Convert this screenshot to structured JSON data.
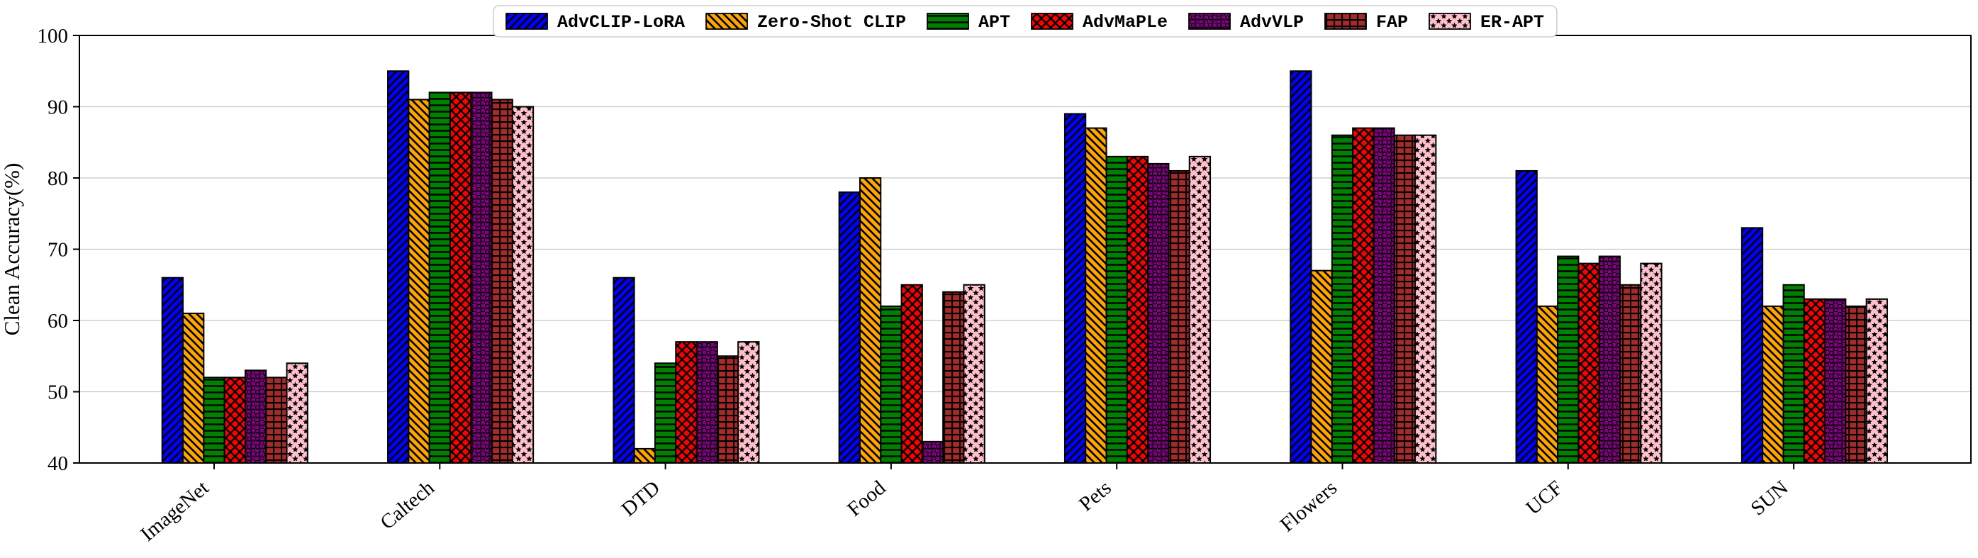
{
  "figure": {
    "background": "#ffffff"
  },
  "chart_data": {
    "type": "bar",
    "title": "",
    "xlabel": "",
    "ylabel": "Clean Accuracy(%)",
    "ylim": [
      40,
      100
    ],
    "yticks": [
      40,
      50,
      60,
      70,
      80,
      90,
      100
    ],
    "grid": true,
    "grid_color": "#c8c8c8",
    "axis_color": "#000000",
    "legend_position": "top-center",
    "categories": [
      "ImageNet",
      "Caltech",
      "DTD",
      "Food",
      "Pets",
      "Flowers",
      "UCF",
      "SUN"
    ],
    "series": [
      {
        "name": "AdvCLIP-LoRA",
        "color": "#0000ff",
        "hatch": "/",
        "values": [
          66,
          95,
          66,
          78,
          89,
          95,
          81,
          73
        ]
      },
      {
        "name": "Zero-Shot CLIP",
        "color": "#ffa500",
        "hatch": "\\",
        "values": [
          61,
          91,
          42,
          80,
          87,
          67,
          62,
          62
        ]
      },
      {
        "name": "APT",
        "color": "#008000",
        "hatch": "-",
        "values": [
          52,
          92,
          54,
          62,
          83,
          86,
          69,
          65
        ]
      },
      {
        "name": "AdvMaPLe",
        "color": "#ff0000",
        "hatch": "x",
        "values": [
          52,
          92,
          57,
          65,
          83,
          87,
          68,
          63
        ]
      },
      {
        "name": "AdvVLP",
        "color": "#800080",
        "hatch": "o",
        "values": [
          53,
          92,
          57,
          43,
          82,
          87,
          69,
          63
        ]
      },
      {
        "name": "FAP",
        "color": "#a52a2a",
        "hatch": "+",
        "values": [
          52,
          91,
          55,
          64,
          81,
          86,
          65,
          62
        ]
      },
      {
        "name": "ER-APT",
        "color": "#ffc0cb",
        "hatch": "*",
        "values": [
          54,
          90,
          57,
          65,
          83,
          86,
          68,
          63
        ]
      }
    ]
  }
}
